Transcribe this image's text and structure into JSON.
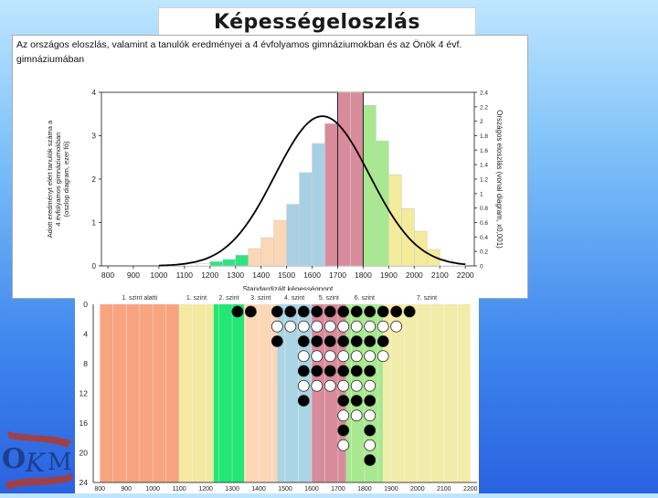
{
  "page": {
    "title": "Képességeloszlás"
  },
  "top_chart": {
    "heading": "Az országos eloszlás, valamint a tanulók eredményei a 4 évfolyamos gimnáziumokban és az Önök 4 évf. gimnáziumában",
    "left_axis_label_lines": [
      "Adott eredményt elért tanulók száma a",
      "4 évfolyamos gimnáziumokban",
      "(oszlop diagram, ezer fő)"
    ],
    "right_axis_label": "Országos eloszlás (vonal diagram, x0,001)",
    "xlabel": "Standardizált képességpont"
  },
  "chart_data": [
    {
      "type": "bar",
      "name": "histogram-with-normal-curve",
      "x_categories": [
        800,
        900,
        1000,
        1100,
        1200,
        1300,
        1400,
        1500,
        1600,
        1700,
        1800,
        1900,
        2000,
        2100,
        2200
      ],
      "bin_width": 50,
      "bins": [
        {
          "x": 1000,
          "value": 0.02,
          "color": "#ffffff"
        },
        {
          "x": 1050,
          "value": 0.02,
          "color": "#ffffff"
        },
        {
          "x": 1100,
          "value": 0.05,
          "color": "#ffffff"
        },
        {
          "x": 1150,
          "value": 0.05,
          "color": "#ffffff"
        },
        {
          "x": 1200,
          "value": 0.1,
          "color": "#2fe383"
        },
        {
          "x": 1250,
          "value": 0.15,
          "color": "#2fe383"
        },
        {
          "x": 1300,
          "value": 0.25,
          "color": "#2fe383"
        },
        {
          "x": 1350,
          "value": 0.4,
          "color": "#fcd7b6"
        },
        {
          "x": 1400,
          "value": 0.65,
          "color": "#fcd7b6"
        },
        {
          "x": 1450,
          "value": 1.05,
          "color": "#fcd7b6"
        },
        {
          "x": 1500,
          "value": 1.42,
          "color": "#a8d0e4"
        },
        {
          "x": 1550,
          "value": 2.15,
          "color": "#a8d0e4"
        },
        {
          "x": 1600,
          "value": 2.82,
          "color": "#a8d0e4"
        },
        {
          "x": 1650,
          "value": 3.28,
          "color": "#d88c9b"
        },
        {
          "x": 1700,
          "value": 4.0,
          "color": "#d88c9b"
        },
        {
          "x": 1750,
          "value": 4.0,
          "color": "#d88c9b"
        },
        {
          "x": 1800,
          "value": 3.7,
          "color": "#a8e890"
        },
        {
          "x": 1850,
          "value": 2.88,
          "color": "#a8e890"
        },
        {
          "x": 1900,
          "value": 2.1,
          "color": "#f4eb9a"
        },
        {
          "x": 1950,
          "value": 1.32,
          "color": "#f4eb9a"
        },
        {
          "x": 2000,
          "value": 0.8,
          "color": "#f4eb9a"
        },
        {
          "x": 2050,
          "value": 0.38,
          "color": "#f4eb9a"
        },
        {
          "x": 2100,
          "value": 0.15,
          "color": "#ffffff"
        },
        {
          "x": 2150,
          "value": 0.06,
          "color": "#ffffff"
        }
      ],
      "ylim_left": [
        0,
        4
      ],
      "yticks_left": [
        "0",
        "1",
        "2",
        "3",
        "4"
      ],
      "yticks_right": [
        "0",
        "0.2",
        "0.4",
        "0.6",
        "0.8",
        "1",
        "1.2",
        "1.4",
        "1.6",
        "1.8",
        "2",
        "2.2",
        "2.4"
      ],
      "ylim_right": [
        0,
        2.4
      ],
      "curve": {
        "mean": 1640,
        "sd": 185,
        "peak_right_axis": 2.07
      },
      "level_lines_x": [
        1700,
        1800
      ]
    },
    {
      "type": "scatter",
      "name": "school-student-dots",
      "xticks": [
        800,
        900,
        1000,
        1100,
        1200,
        1300,
        1400,
        1500,
        1600,
        1700,
        1800,
        1900,
        2000,
        2100,
        2200
      ],
      "yticks": [
        0,
        4,
        8,
        12,
        16,
        20,
        24
      ],
      "ylim": [
        0,
        24
      ],
      "y_reversed": true,
      "levels": [
        {
          "label": "1. szint alatti",
          "from": 800,
          "to": 1100,
          "color": "#f8a480"
        },
        {
          "label": "1. szint",
          "from": 1100,
          "to": 1230,
          "color": "#f3e9a0"
        },
        {
          "label": "2. szint",
          "from": 1230,
          "to": 1345,
          "color": "#22e676"
        },
        {
          "label": "3. szint",
          "from": 1345,
          "to": 1470,
          "color": "#fcd7b6"
        },
        {
          "label": "4. szint",
          "from": 1470,
          "to": 1600,
          "color": "#abd4e4"
        },
        {
          "label": "5. szint",
          "from": 1600,
          "to": 1730,
          "color": "#d88c9b"
        },
        {
          "label": "6. szint",
          "from": 1730,
          "to": 1870,
          "color": "#a8e890"
        },
        {
          "label": "7. szint",
          "from": 1870,
          "to": 2200,
          "color": "#f2ecaa"
        }
      ],
      "columns": [
        {
          "x": 1320,
          "count": 1
        },
        {
          "x": 1370,
          "count": 1
        },
        {
          "x": 1470,
          "count": 3
        },
        {
          "x": 1520,
          "count": 2
        },
        {
          "x": 1570,
          "count": 7
        },
        {
          "x": 1620,
          "count": 6
        },
        {
          "x": 1670,
          "count": 6
        },
        {
          "x": 1720,
          "count": 10
        },
        {
          "x": 1770,
          "count": 8
        },
        {
          "x": 1820,
          "count": 11
        },
        {
          "x": 1870,
          "count": 4
        },
        {
          "x": 1920,
          "count": 2
        },
        {
          "x": 1970,
          "count": 1
        }
      ]
    }
  ]
}
